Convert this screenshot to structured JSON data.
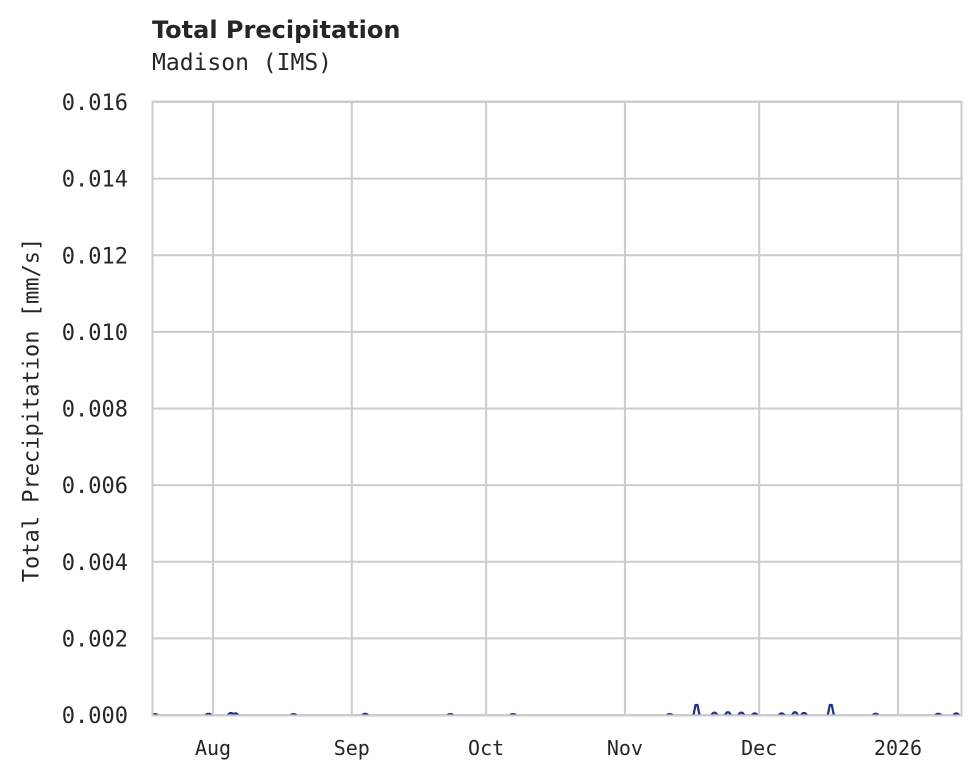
{
  "chart_data": {
    "type": "line",
    "title": "Total Precipitation",
    "subtitle": "Madison (IMS)",
    "xlabel": "",
    "ylabel": "Total Precipitation [mm/s]",
    "ylim": [
      0,
      0.016
    ],
    "yticks": [
      "0.000",
      "0.002",
      "0.004",
      "0.006",
      "0.008",
      "0.010",
      "0.012",
      "0.014",
      "0.016"
    ],
    "xticks": [
      "Aug",
      "Sep",
      "Oct",
      "Nov",
      "Dec",
      "2026"
    ],
    "grid": true,
    "legend": null,
    "series": [
      {
        "name": "Total Precipitation",
        "color": "#1f2f8a",
        "points": [
          {
            "date": "2025-07-19",
            "value": 2e-05
          },
          {
            "date": "2025-07-31",
            "value": 3e-05
          },
          {
            "date": "2025-08-05",
            "value": 5e-05
          },
          {
            "date": "2025-08-06",
            "value": 4e-05
          },
          {
            "date": "2025-08-19",
            "value": 2e-05
          },
          {
            "date": "2025-09-04",
            "value": 3e-05
          },
          {
            "date": "2025-09-23",
            "value": 2e-05
          },
          {
            "date": "2025-10-07",
            "value": 2e-05
          },
          {
            "date": "2025-11-11",
            "value": 2e-05
          },
          {
            "date": "2025-11-17",
            "value": 0.00026
          },
          {
            "date": "2025-11-21",
            "value": 6e-05
          },
          {
            "date": "2025-11-24",
            "value": 7e-05
          },
          {
            "date": "2025-11-27",
            "value": 6e-05
          },
          {
            "date": "2025-11-30",
            "value": 4e-05
          },
          {
            "date": "2025-12-06",
            "value": 4e-05
          },
          {
            "date": "2025-12-09",
            "value": 7e-05
          },
          {
            "date": "2025-12-11",
            "value": 5e-05
          },
          {
            "date": "2025-12-17",
            "value": 0.00026
          },
          {
            "date": "2025-12-27",
            "value": 3e-05
          },
          {
            "date": "2026-01-10",
            "value": 3e-05
          },
          {
            "date": "2026-01-14",
            "value": 4e-05
          }
        ]
      }
    ]
  },
  "header": {
    "title": "Total Precipitation",
    "subtitle": "Madison (IMS)"
  },
  "axes": {
    "ylabel": "Total Precipitation [mm/s]",
    "yticks": [
      "0.000",
      "0.002",
      "0.004",
      "0.006",
      "0.008",
      "0.010",
      "0.012",
      "0.014",
      "0.016"
    ],
    "xticks": [
      "Aug",
      "Sep",
      "Oct",
      "Nov",
      "Dec",
      "2026"
    ]
  }
}
